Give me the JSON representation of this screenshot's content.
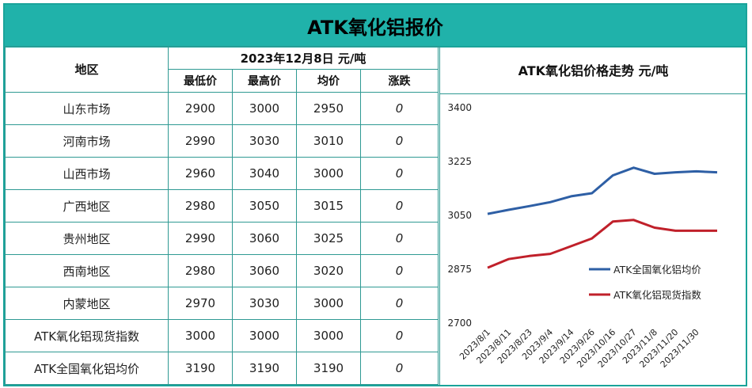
{
  "title": "ATK氧化铝报价",
  "table": {
    "region_header": "地区",
    "date_header": "2023年12月8日  元/吨",
    "col_headers": [
      "最低价",
      "最高价",
      "均价",
      "涨跌"
    ],
    "rows": [
      {
        "region": "山东市场",
        "low": "2900",
        "high": "3000",
        "avg": "2950",
        "change": "0"
      },
      {
        "region": "河南市场",
        "low": "2990",
        "high": "3030",
        "avg": "3010",
        "change": "0"
      },
      {
        "region": "山西市场",
        "low": "2960",
        "high": "3040",
        "avg": "3000",
        "change": "0"
      },
      {
        "region": "广西地区",
        "low": "2980",
        "high": "3050",
        "avg": "3015",
        "change": "0"
      },
      {
        "region": "贵州地区",
        "low": "2990",
        "high": "3060",
        "avg": "3025",
        "change": "0"
      },
      {
        "region": "西南地区",
        "low": "2980",
        "high": "3060",
        "avg": "3020",
        "change": "0"
      },
      {
        "region": "内蒙地区",
        "low": "2970",
        "high": "3030",
        "avg": "3000",
        "change": "0"
      },
      {
        "region": "ATK氧化铝现货指数",
        "low": "3000",
        "high": "3000",
        "avg": "3000",
        "change": "0"
      },
      {
        "region": "ATK全国氧化铝均价",
        "low": "3190",
        "high": "3190",
        "avg": "3190",
        "change": "0"
      }
    ]
  },
  "chart_data": {
    "type": "line",
    "title": "ATK氧化铝价格走势  元/吨",
    "xlabel": "",
    "ylabel": "",
    "ylim": [
      2700,
      3400
    ],
    "yticks": [
      2700,
      2875,
      3050,
      3225,
      3400
    ],
    "x": [
      "2023/8/1",
      "2023/8/11",
      "2023/8/23",
      "2023/9/4",
      "2023/9/14",
      "2023/9/26",
      "2023/10/16",
      "2023/10/27",
      "2023/11/8",
      "2023/11/20",
      "2023/11/30",
      "2023/12/8"
    ],
    "xtick_labels": [
      "2023/8/1",
      "2023/8/11",
      "2023/8/23",
      "2023/9/4",
      "2023/9/14",
      "2023/9/26",
      "2023/10/16",
      "2023/10/27",
      "2023/11/8",
      "2023/11/20",
      "2023/11/30"
    ],
    "series": [
      {
        "name": "ATK全国氧化铝均价",
        "color": "#2e5fa5",
        "values": [
          3055,
          3068,
          3080,
          3093,
          3112,
          3122,
          3180,
          3205,
          3185,
          3190,
          3193,
          3190
        ]
      },
      {
        "name": "ATK氧化铝现货指数",
        "color": "#c0202a",
        "values": [
          2880,
          2908,
          2918,
          2925,
          2950,
          2975,
          3030,
          3035,
          3010,
          3000,
          3000,
          3000
        ]
      }
    ],
    "legend_position": "bottom-right",
    "grid": false
  }
}
